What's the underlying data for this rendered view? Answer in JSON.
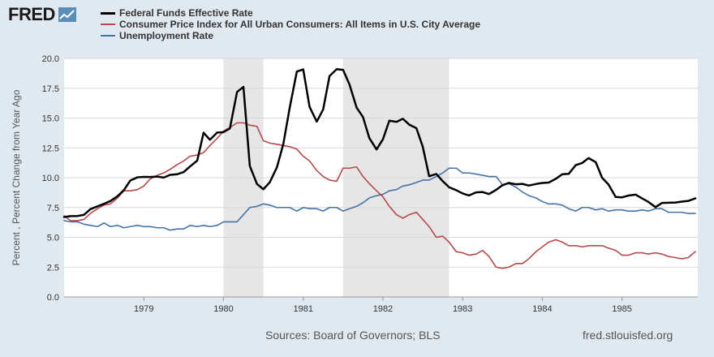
{
  "header": {
    "logo_text": "FRED",
    "logo_icon": "trend-line-icon"
  },
  "footer": {
    "source": "Sources: Board of Governors; BLS",
    "url": "fred.stlouisfed.org"
  },
  "colors": {
    "background": "#e1e9f0",
    "plot_background": "#ffffff",
    "grid": "#d8d8d8",
    "recession": "#e6e6e6"
  },
  "chart_data": {
    "type": "line",
    "title": "",
    "xlabel": "",
    "ylabel": "Percent , Percent Change from Year Ago",
    "xlim": [
      1978.0,
      1985.95
    ],
    "ylim": [
      0,
      20
    ],
    "yticks": [
      "0.0",
      "2.5",
      "5.0",
      "7.5",
      "10.0",
      "12.5",
      "15.0",
      "17.5",
      "20.0"
    ],
    "xticks": [
      "1979",
      "1980",
      "1981",
      "1982",
      "1983",
      "1984",
      "1985"
    ],
    "grid": true,
    "legend_position": "top-left",
    "recessions": [
      [
        1980.0,
        1980.5
      ],
      [
        1981.5,
        1982.83
      ]
    ],
    "series": [
      {
        "name": "Federal Funds Effective Rate",
        "color": "#000000",
        "width": 2.5,
        "points": [
          [
            1978.0,
            6.7
          ],
          [
            1978.08,
            6.78
          ],
          [
            1978.17,
            6.79
          ],
          [
            1978.25,
            6.89
          ],
          [
            1978.33,
            7.36
          ],
          [
            1978.42,
            7.6
          ],
          [
            1978.5,
            7.81
          ],
          [
            1978.58,
            8.04
          ],
          [
            1978.67,
            8.45
          ],
          [
            1978.75,
            8.96
          ],
          [
            1978.83,
            9.76
          ],
          [
            1978.92,
            10.03
          ],
          [
            1979.0,
            10.07
          ],
          [
            1979.08,
            10.06
          ],
          [
            1979.17,
            10.09
          ],
          [
            1979.25,
            10.01
          ],
          [
            1979.33,
            10.24
          ],
          [
            1979.42,
            10.29
          ],
          [
            1979.5,
            10.47
          ],
          [
            1979.58,
            10.94
          ],
          [
            1979.67,
            11.43
          ],
          [
            1979.75,
            13.77
          ],
          [
            1979.83,
            13.18
          ],
          [
            1979.92,
            13.78
          ],
          [
            1980.0,
            13.82
          ],
          [
            1980.08,
            14.13
          ],
          [
            1980.17,
            17.19
          ],
          [
            1980.25,
            17.61
          ],
          [
            1980.33,
            10.98
          ],
          [
            1980.42,
            9.47
          ],
          [
            1980.5,
            9.03
          ],
          [
            1980.58,
            9.61
          ],
          [
            1980.67,
            10.87
          ],
          [
            1980.75,
            12.81
          ],
          [
            1980.83,
            15.85
          ],
          [
            1980.92,
            18.9
          ],
          [
            1981.0,
            19.08
          ],
          [
            1981.08,
            15.93
          ],
          [
            1981.17,
            14.7
          ],
          [
            1981.25,
            15.72
          ],
          [
            1981.33,
            18.52
          ],
          [
            1981.42,
            19.1
          ],
          [
            1981.5,
            19.04
          ],
          [
            1981.58,
            17.82
          ],
          [
            1981.67,
            15.87
          ],
          [
            1981.75,
            15.08
          ],
          [
            1981.83,
            13.31
          ],
          [
            1981.92,
            12.37
          ],
          [
            1982.0,
            13.22
          ],
          [
            1982.08,
            14.78
          ],
          [
            1982.17,
            14.68
          ],
          [
            1982.25,
            14.94
          ],
          [
            1982.33,
            14.45
          ],
          [
            1982.42,
            14.15
          ],
          [
            1982.5,
            12.59
          ],
          [
            1982.58,
            10.12
          ],
          [
            1982.67,
            10.31
          ],
          [
            1982.75,
            9.71
          ],
          [
            1982.83,
            9.2
          ],
          [
            1982.92,
            8.95
          ],
          [
            1983.0,
            8.68
          ],
          [
            1983.08,
            8.51
          ],
          [
            1983.17,
            8.77
          ],
          [
            1983.25,
            8.8
          ],
          [
            1983.33,
            8.63
          ],
          [
            1983.42,
            8.98
          ],
          [
            1983.5,
            9.37
          ],
          [
            1983.58,
            9.56
          ],
          [
            1983.67,
            9.45
          ],
          [
            1983.75,
            9.48
          ],
          [
            1983.83,
            9.34
          ],
          [
            1983.92,
            9.47
          ],
          [
            1984.0,
            9.56
          ],
          [
            1984.08,
            9.59
          ],
          [
            1984.17,
            9.91
          ],
          [
            1984.25,
            10.29
          ],
          [
            1984.33,
            10.32
          ],
          [
            1984.42,
            11.06
          ],
          [
            1984.5,
            11.23
          ],
          [
            1984.58,
            11.64
          ],
          [
            1984.67,
            11.3
          ],
          [
            1984.75,
            9.99
          ],
          [
            1984.83,
            9.43
          ],
          [
            1984.92,
            8.38
          ],
          [
            1985.0,
            8.35
          ],
          [
            1985.08,
            8.5
          ],
          [
            1985.17,
            8.58
          ],
          [
            1985.25,
            8.27
          ],
          [
            1985.33,
            7.97
          ],
          [
            1985.42,
            7.53
          ],
          [
            1985.5,
            7.88
          ],
          [
            1985.58,
            7.9
          ],
          [
            1985.67,
            7.92
          ],
          [
            1985.75,
            7.99
          ],
          [
            1985.83,
            8.05
          ],
          [
            1985.92,
            8.27
          ]
        ]
      },
      {
        "name": "Consumer Price Index for All Urban Consumers: All Items in U.S. City Average",
        "color": "#b5494c",
        "width": 1.6,
        "points": [
          [
            1978.0,
            6.8
          ],
          [
            1978.08,
            6.4
          ],
          [
            1978.17,
            6.4
          ],
          [
            1978.25,
            6.5
          ],
          [
            1978.33,
            7.0
          ],
          [
            1978.42,
            7.4
          ],
          [
            1978.5,
            7.7
          ],
          [
            1978.58,
            7.8
          ],
          [
            1978.67,
            8.3
          ],
          [
            1978.75,
            8.9
          ],
          [
            1978.83,
            8.9
          ],
          [
            1978.92,
            9.0
          ],
          [
            1979.0,
            9.3
          ],
          [
            1979.08,
            9.9
          ],
          [
            1979.17,
            10.2
          ],
          [
            1979.25,
            10.4
          ],
          [
            1979.33,
            10.7
          ],
          [
            1979.42,
            11.1
          ],
          [
            1979.5,
            11.4
          ],
          [
            1979.58,
            11.8
          ],
          [
            1979.67,
            11.9
          ],
          [
            1979.75,
            12.1
          ],
          [
            1979.83,
            12.7
          ],
          [
            1979.92,
            13.3
          ],
          [
            1980.0,
            13.9
          ],
          [
            1980.08,
            14.2
          ],
          [
            1980.17,
            14.6
          ],
          [
            1980.25,
            14.6
          ],
          [
            1980.33,
            14.4
          ],
          [
            1980.42,
            14.3
          ],
          [
            1980.5,
            13.1
          ],
          [
            1980.58,
            12.9
          ],
          [
            1980.67,
            12.8
          ],
          [
            1980.75,
            12.7
          ],
          [
            1980.83,
            12.6
          ],
          [
            1980.92,
            12.4
          ],
          [
            1981.0,
            11.8
          ],
          [
            1981.08,
            11.4
          ],
          [
            1981.17,
            10.6
          ],
          [
            1981.25,
            10.1
          ],
          [
            1981.33,
            9.8
          ],
          [
            1981.42,
            9.7
          ],
          [
            1981.5,
            10.8
          ],
          [
            1981.58,
            10.8
          ],
          [
            1981.67,
            10.9
          ],
          [
            1981.75,
            10.1
          ],
          [
            1981.83,
            9.5
          ],
          [
            1981.92,
            8.9
          ],
          [
            1982.0,
            8.4
          ],
          [
            1982.08,
            7.6
          ],
          [
            1982.17,
            6.9
          ],
          [
            1982.25,
            6.6
          ],
          [
            1982.33,
            6.9
          ],
          [
            1982.42,
            7.1
          ],
          [
            1982.5,
            6.5
          ],
          [
            1982.58,
            5.9
          ],
          [
            1982.67,
            5.0
          ],
          [
            1982.75,
            5.1
          ],
          [
            1982.83,
            4.6
          ],
          [
            1982.92,
            3.8
          ],
          [
            1983.0,
            3.7
          ],
          [
            1983.08,
            3.5
          ],
          [
            1983.17,
            3.6
          ],
          [
            1983.25,
            3.9
          ],
          [
            1983.33,
            3.4
          ],
          [
            1983.42,
            2.5
          ],
          [
            1983.5,
            2.4
          ],
          [
            1983.58,
            2.5
          ],
          [
            1983.67,
            2.8
          ],
          [
            1983.75,
            2.8
          ],
          [
            1983.83,
            3.2
          ],
          [
            1983.92,
            3.8
          ],
          [
            1984.0,
            4.2
          ],
          [
            1984.08,
            4.6
          ],
          [
            1984.17,
            4.8
          ],
          [
            1984.25,
            4.6
          ],
          [
            1984.33,
            4.3
          ],
          [
            1984.42,
            4.3
          ],
          [
            1984.5,
            4.2
          ],
          [
            1984.58,
            4.3
          ],
          [
            1984.67,
            4.3
          ],
          [
            1984.75,
            4.3
          ],
          [
            1984.83,
            4.1
          ],
          [
            1984.92,
            3.9
          ],
          [
            1985.0,
            3.5
          ],
          [
            1985.08,
            3.5
          ],
          [
            1985.17,
            3.7
          ],
          [
            1985.25,
            3.7
          ],
          [
            1985.33,
            3.6
          ],
          [
            1985.42,
            3.7
          ],
          [
            1985.5,
            3.6
          ],
          [
            1985.58,
            3.4
          ],
          [
            1985.67,
            3.3
          ],
          [
            1985.75,
            3.2
          ],
          [
            1985.83,
            3.3
          ],
          [
            1985.92,
            3.8
          ]
        ]
      },
      {
        "name": "Unemployment Rate",
        "color": "#4572a7",
        "width": 1.6,
        "points": [
          [
            1978.0,
            6.4
          ],
          [
            1978.08,
            6.3
          ],
          [
            1978.17,
            6.3
          ],
          [
            1978.25,
            6.1
          ],
          [
            1978.33,
            6.0
          ],
          [
            1978.42,
            5.9
          ],
          [
            1978.5,
            6.2
          ],
          [
            1978.58,
            5.9
          ],
          [
            1978.67,
            6.0
          ],
          [
            1978.75,
            5.8
          ],
          [
            1978.83,
            5.9
          ],
          [
            1978.92,
            6.0
          ],
          [
            1979.0,
            5.9
          ],
          [
            1979.08,
            5.9
          ],
          [
            1979.17,
            5.8
          ],
          [
            1979.25,
            5.8
          ],
          [
            1979.33,
            5.6
          ],
          [
            1979.42,
            5.7
          ],
          [
            1979.5,
            5.7
          ],
          [
            1979.58,
            6.0
          ],
          [
            1979.67,
            5.9
          ],
          [
            1979.75,
            6.0
          ],
          [
            1979.83,
            5.9
          ],
          [
            1979.92,
            6.0
          ],
          [
            1980.0,
            6.3
          ],
          [
            1980.08,
            6.3
          ],
          [
            1980.17,
            6.3
          ],
          [
            1980.25,
            6.9
          ],
          [
            1980.33,
            7.5
          ],
          [
            1980.42,
            7.6
          ],
          [
            1980.5,
            7.8
          ],
          [
            1980.58,
            7.7
          ],
          [
            1980.67,
            7.5
          ],
          [
            1980.75,
            7.5
          ],
          [
            1980.83,
            7.5
          ],
          [
            1980.92,
            7.2
          ],
          [
            1981.0,
            7.5
          ],
          [
            1981.08,
            7.4
          ],
          [
            1981.17,
            7.4
          ],
          [
            1981.25,
            7.2
          ],
          [
            1981.33,
            7.5
          ],
          [
            1981.42,
            7.5
          ],
          [
            1981.5,
            7.2
          ],
          [
            1981.58,
            7.4
          ],
          [
            1981.67,
            7.6
          ],
          [
            1981.75,
            7.9
          ],
          [
            1981.83,
            8.3
          ],
          [
            1981.92,
            8.5
          ],
          [
            1982.0,
            8.6
          ],
          [
            1982.08,
            8.9
          ],
          [
            1982.17,
            9.0
          ],
          [
            1982.25,
            9.3
          ],
          [
            1982.33,
            9.4
          ],
          [
            1982.42,
            9.6
          ],
          [
            1982.5,
            9.8
          ],
          [
            1982.58,
            9.8
          ],
          [
            1982.67,
            10.1
          ],
          [
            1982.75,
            10.4
          ],
          [
            1982.83,
            10.8
          ],
          [
            1982.92,
            10.8
          ],
          [
            1983.0,
            10.4
          ],
          [
            1983.08,
            10.4
          ],
          [
            1983.17,
            10.3
          ],
          [
            1983.25,
            10.2
          ],
          [
            1983.33,
            10.1
          ],
          [
            1983.42,
            10.1
          ],
          [
            1983.5,
            9.4
          ],
          [
            1983.58,
            9.5
          ],
          [
            1983.67,
            9.2
          ],
          [
            1983.75,
            8.8
          ],
          [
            1983.83,
            8.5
          ],
          [
            1983.92,
            8.3
          ],
          [
            1984.0,
            8.0
          ],
          [
            1984.08,
            7.8
          ],
          [
            1984.17,
            7.8
          ],
          [
            1984.25,
            7.7
          ],
          [
            1984.33,
            7.4
          ],
          [
            1984.42,
            7.2
          ],
          [
            1984.5,
            7.5
          ],
          [
            1984.58,
            7.5
          ],
          [
            1984.67,
            7.3
          ],
          [
            1984.75,
            7.4
          ],
          [
            1984.83,
            7.2
          ],
          [
            1984.92,
            7.3
          ],
          [
            1985.0,
            7.3
          ],
          [
            1985.08,
            7.2
          ],
          [
            1985.17,
            7.2
          ],
          [
            1985.25,
            7.3
          ],
          [
            1985.33,
            7.2
          ],
          [
            1985.42,
            7.4
          ],
          [
            1985.5,
            7.4
          ],
          [
            1985.58,
            7.1
          ],
          [
            1985.67,
            7.1
          ],
          [
            1985.75,
            7.1
          ],
          [
            1985.83,
            7.0
          ],
          [
            1985.92,
            7.0
          ]
        ]
      }
    ]
  }
}
